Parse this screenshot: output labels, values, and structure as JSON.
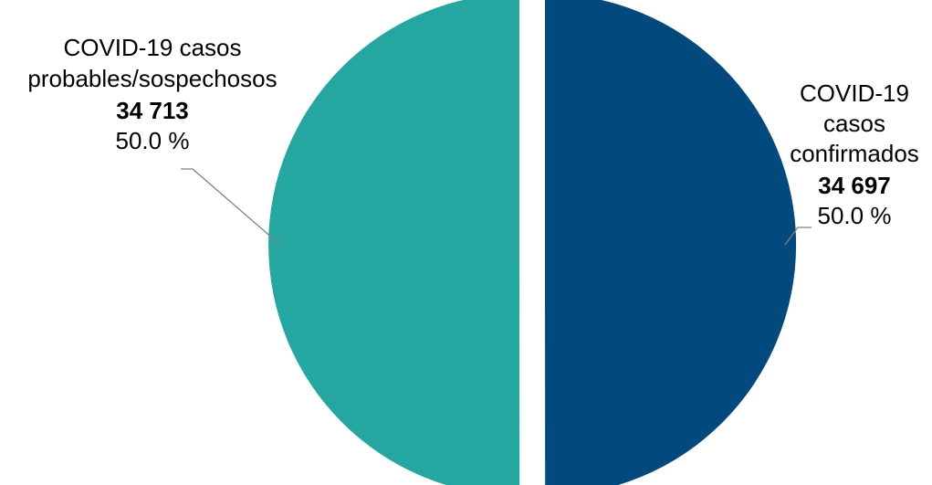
{
  "chart_data": {
    "type": "pie",
    "title": "",
    "slices": [
      {
        "label_lines": [
          "COVID-19",
          "casos",
          "confirmados"
        ],
        "value": 34697,
        "value_label": "34 697",
        "percent_label": "50.0 %",
        "color": "#02497D"
      },
      {
        "label_lines": [
          "COVID-19 casos",
          "probables/sospechosos"
        ],
        "value": 34713,
        "value_label": "34 713",
        "percent_label": "50.0 %",
        "color": "#24A6A1"
      }
    ],
    "legend": "none",
    "exploded": true
  }
}
